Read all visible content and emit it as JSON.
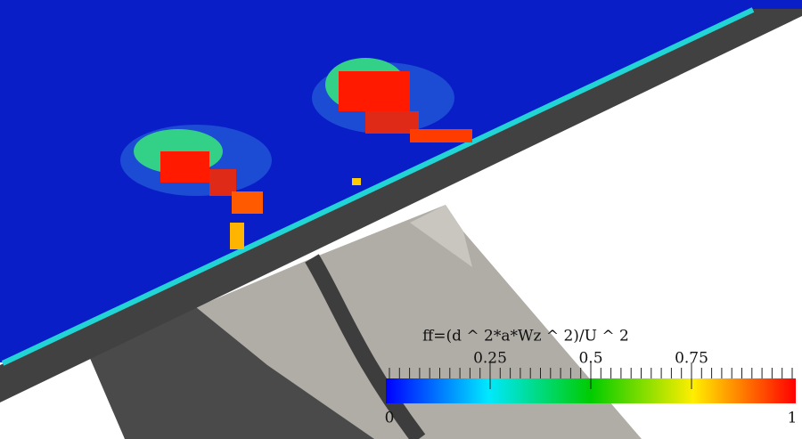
{
  "colorbar": {
    "title": "ff=(d ^ 2*a*Wz ^ 2)/U ^ 2",
    "range": [
      0,
      1
    ],
    "ticks": [
      0.25,
      0.5,
      0.75
    ]
  }
}
